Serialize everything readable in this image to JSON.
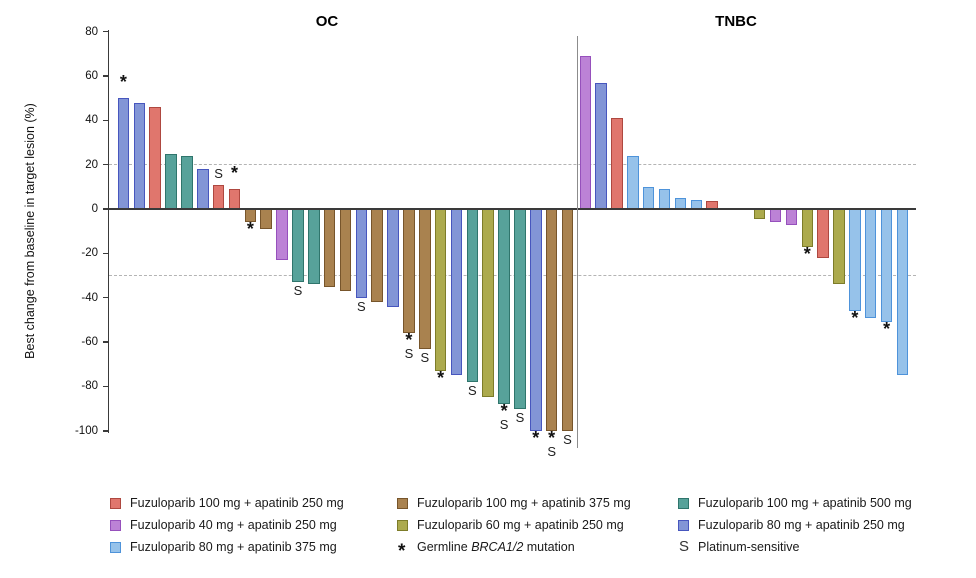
{
  "chart_data": {
    "type": "bar",
    "subtype": "waterfall",
    "axis": {
      "ylabel": "Best change from baseline in target lesion (%)",
      "ticks": [
        80,
        60,
        40,
        20,
        0,
        -20,
        -40,
        -60,
        -80,
        -100
      ],
      "ylim": [
        -100,
        80
      ],
      "thresholds": [
        20,
        -30
      ],
      "grid": "dashed-thresholds-only"
    },
    "groups": {
      "red": {
        "label": "Fuzuloparib 100 mg + apatinib 250 mg",
        "fill": "#E0766D",
        "border": "#AE4840"
      },
      "brown": {
        "label": "Fuzuloparib 100 mg + apatinib 375 mg",
        "fill": "#A9824F",
        "border": "#77552B"
      },
      "teal": {
        "label": "Fuzuloparib 100 mg + apatinib 500 mg",
        "fill": "#57A29A",
        "border": "#2F756C"
      },
      "purple": {
        "label": "Fuzuloparib 40 mg + apatinib 250 mg",
        "fill": "#BC82D6",
        "border": "#9650BC"
      },
      "olive": {
        "label": "Fuzuloparib 60 mg + apatinib 250 mg",
        "fill": "#ACAA4D",
        "border": "#7D7C29"
      },
      "blue": {
        "label": "Fuzuloparib 80 mg + apatinib 250 mg",
        "fill": "#8295D6",
        "border": "#4756BE"
      },
      "sky": {
        "label": "Fuzuloparib 80 mg + apatinib 375 mg",
        "fill": "#96C2EA",
        "border": "#4E93DA"
      }
    },
    "marker_meanings": {
      "*": "Germline BRCA1/2 mutation",
      "S": "Platinum-sensitive"
    },
    "sections": [
      {
        "title": "OC",
        "patients": [
          {
            "v": 50,
            "g": "blue",
            "m": [
              "*"
            ]
          },
          {
            "v": 48,
            "g": "blue"
          },
          {
            "v": 46,
            "g": "red"
          },
          {
            "v": 25,
            "g": "teal"
          },
          {
            "v": 24,
            "g": "teal"
          },
          {
            "v": 18,
            "g": "blue"
          },
          {
            "v": 11,
            "g": "red",
            "m": [
              "S"
            ]
          },
          {
            "v": 9,
            "g": "red",
            "m": [
              "*"
            ]
          },
          {
            "v": -6,
            "g": "brown",
            "m": [
              "*"
            ]
          },
          {
            "v": -9,
            "g": "brown"
          },
          {
            "v": -23,
            "g": "purple"
          },
          {
            "v": -33,
            "g": "teal",
            "m": [
              "S"
            ]
          },
          {
            "v": -34,
            "g": "teal"
          },
          {
            "v": -35,
            "g": "brown"
          },
          {
            "v": -37,
            "g": "brown"
          },
          {
            "v": -40,
            "g": "blue",
            "m": [
              "S"
            ]
          },
          {
            "v": -42,
            "g": "brown"
          },
          {
            "v": -44,
            "g": "blue"
          },
          {
            "v": -56,
            "g": "brown",
            "m": [
              "*",
              "S"
            ]
          },
          {
            "v": -63,
            "g": "brown",
            "m": [
              "S"
            ]
          },
          {
            "v": -73,
            "g": "olive",
            "m": [
              "*"
            ]
          },
          {
            "v": -75,
            "g": "blue"
          },
          {
            "v": -78,
            "g": "teal",
            "m": [
              "S"
            ]
          },
          {
            "v": -85,
            "g": "olive"
          },
          {
            "v": -88,
            "g": "teal",
            "m": [
              "*",
              "S"
            ]
          },
          {
            "v": -90,
            "g": "teal",
            "m": [
              "S"
            ]
          },
          {
            "v": -100,
            "g": "blue",
            "m": [
              "*"
            ]
          },
          {
            "v": -100,
            "g": "brown",
            "m": [
              "*",
              "S"
            ]
          },
          {
            "v": -100,
            "g": "brown",
            "m": [
              "S"
            ]
          }
        ]
      },
      {
        "title": "TNBC",
        "patients": [
          {
            "v": 69,
            "g": "purple"
          },
          {
            "v": 57,
            "g": "blue"
          },
          {
            "v": 41,
            "g": "red"
          },
          {
            "v": 24,
            "g": "sky"
          },
          {
            "v": 10,
            "g": "sky"
          },
          {
            "v": 9,
            "g": "sky"
          },
          {
            "v": 5,
            "g": "sky"
          },
          {
            "v": 4,
            "g": "sky"
          },
          {
            "v": 3.5,
            "g": "red"
          },
          {
            "v": null
          },
          {
            "v": null
          },
          {
            "v": -4.5,
            "g": "olive"
          },
          {
            "v": -6,
            "g": "purple"
          },
          {
            "v": -7,
            "g": "purple"
          },
          {
            "v": -17,
            "g": "olive",
            "m": [
              "*"
            ]
          },
          {
            "v": -22,
            "g": "red"
          },
          {
            "v": -34,
            "g": "olive"
          },
          {
            "v": -46,
            "g": "sky",
            "m": [
              "*"
            ]
          },
          {
            "v": -49,
            "g": "sky"
          },
          {
            "v": -51,
            "g": "sky",
            "m": [
              "*"
            ]
          },
          {
            "v": -75,
            "g": "sky"
          }
        ]
      }
    ],
    "legend": {
      "columns": [
        [
          {
            "type": "swatch",
            "group": "red",
            "label": "Fuzuloparib 100 mg + apatinib 250 mg"
          },
          {
            "type": "swatch",
            "group": "purple",
            "label": "Fuzuloparib 40 mg + apatinib 250 mg"
          },
          {
            "type": "swatch",
            "group": "sky",
            "label": "Fuzuloparib 80 mg + apatinib 375 mg"
          }
        ],
        [
          {
            "type": "swatch",
            "group": "brown",
            "label": "Fuzuloparib 100 mg + apatinib 375 mg"
          },
          {
            "type": "swatch",
            "group": "olive",
            "label": "Fuzuloparib 60 mg + apatinib 250 mg"
          },
          {
            "type": "symbol",
            "symbol": "*",
            "label_prefix": "Germline ",
            "label_italic": "BRCA1/2",
            "label_suffix": " mutation"
          }
        ],
        [
          {
            "type": "swatch",
            "group": "teal",
            "label": "Fuzuloparib 100 mg + apatinib 500 mg"
          },
          {
            "type": "swatch",
            "group": "blue",
            "label": "Fuzuloparib 80 mg + apatinib 250 mg"
          },
          {
            "type": "symbol",
            "symbol": "S",
            "label": "Platinum-sensitive"
          }
        ]
      ]
    }
  }
}
